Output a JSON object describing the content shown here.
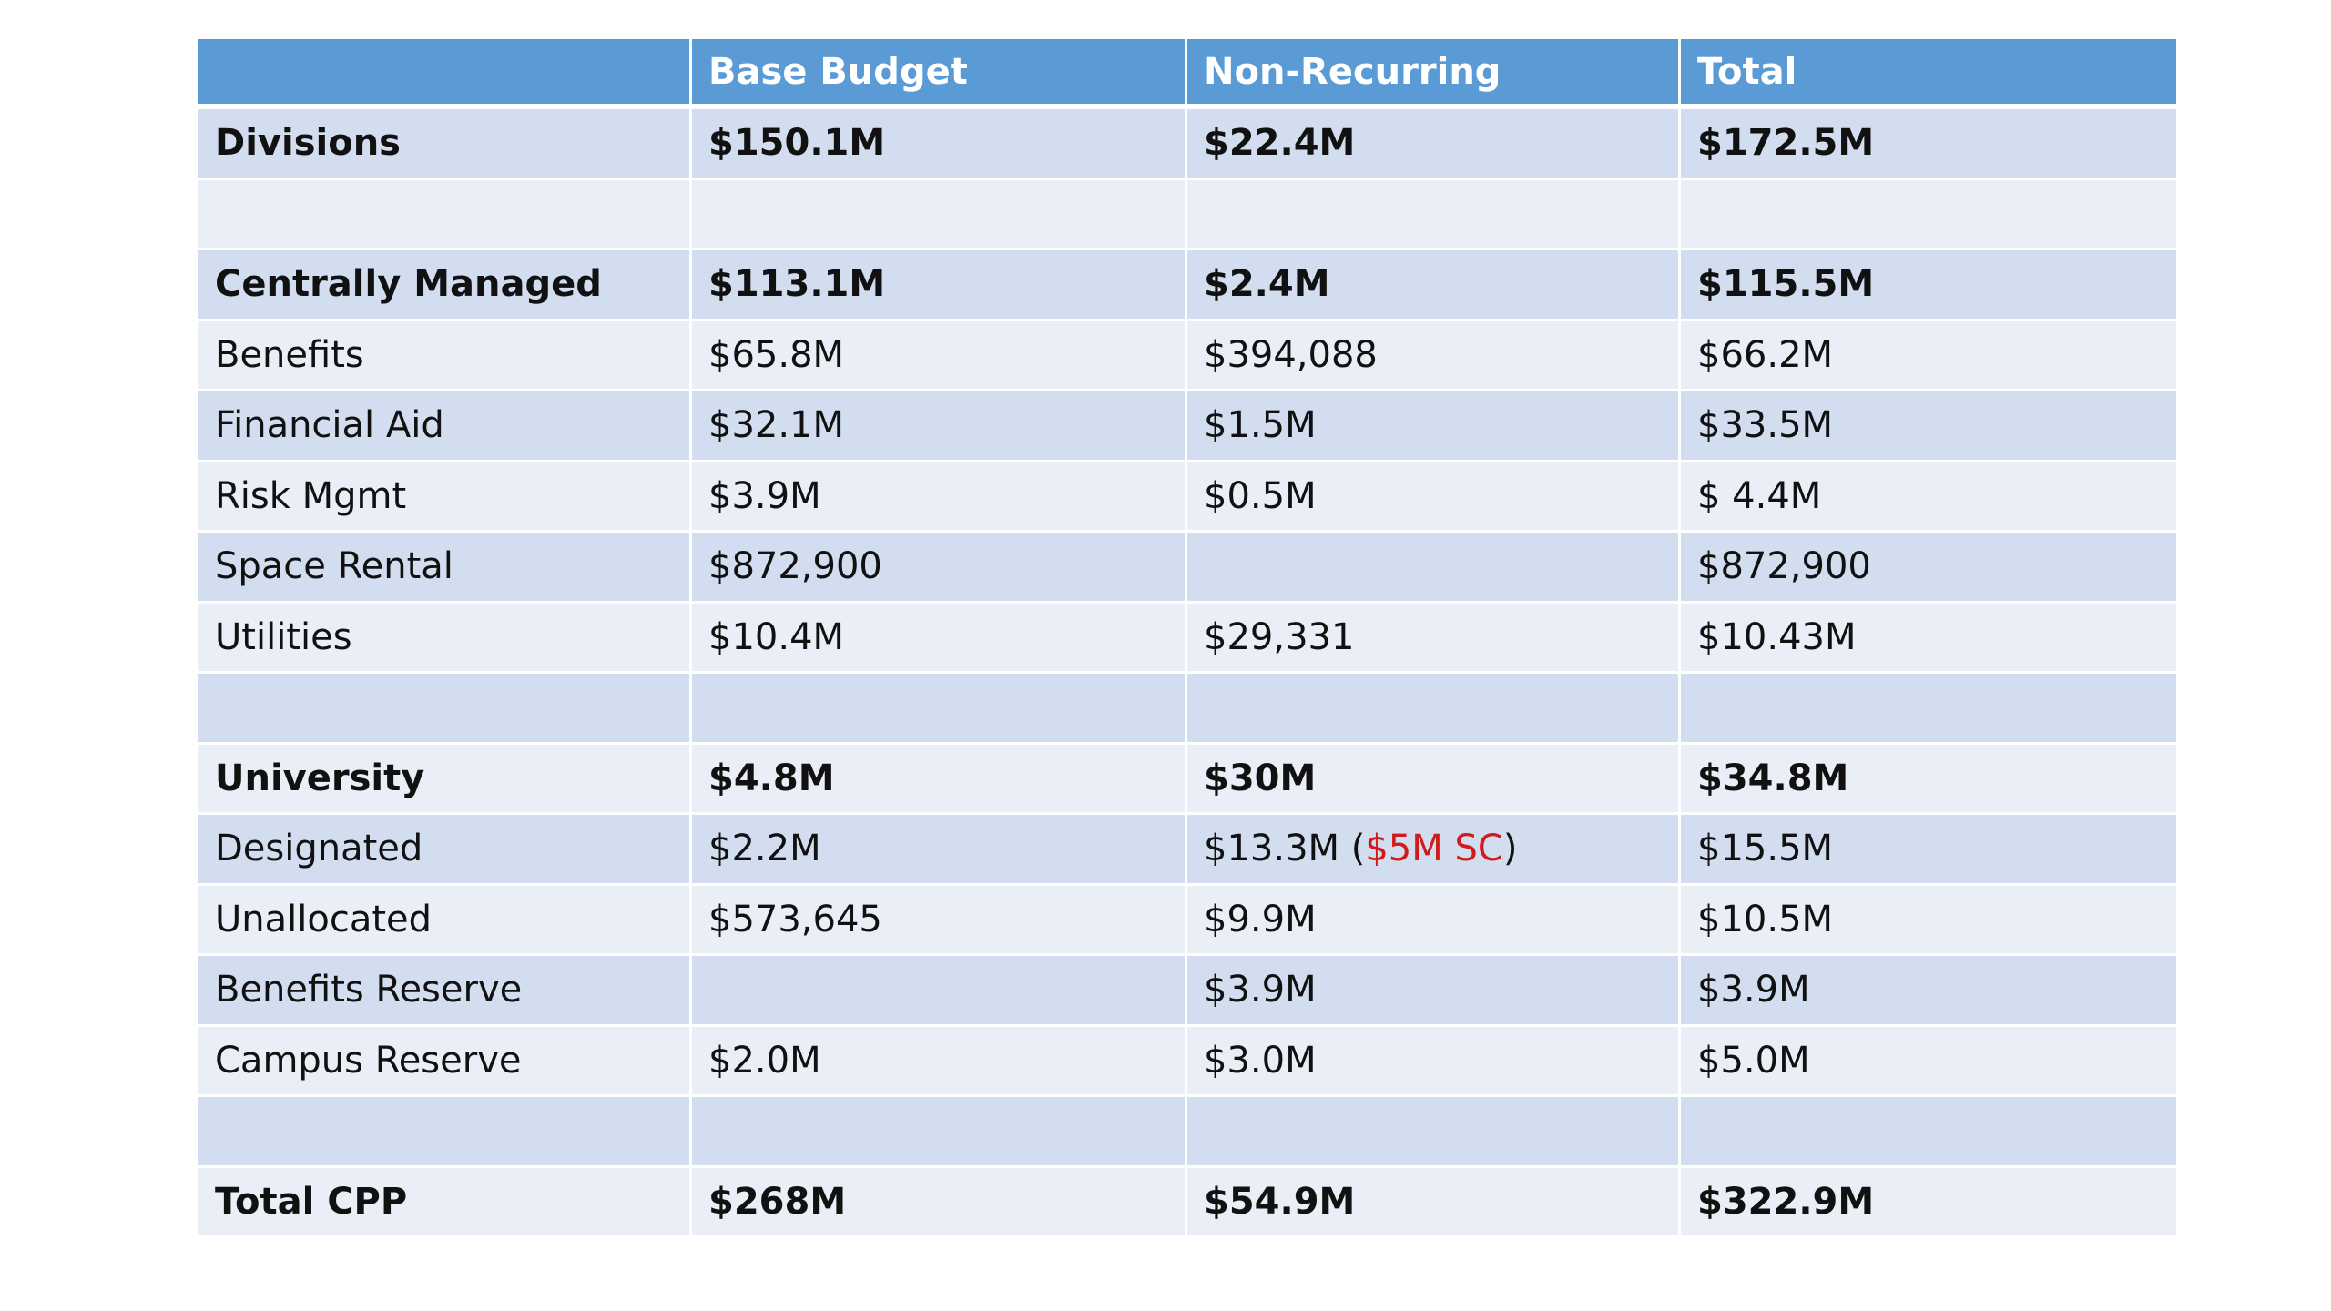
{
  "table": {
    "headers": [
      "",
      "Base Budget",
      "Non-Recurring",
      "Total"
    ],
    "rows": [
      {
        "label": "Divisions",
        "base": "$150.1M",
        "nonrec": "$22.4M",
        "total": "$172.5M",
        "bold": true
      },
      {
        "label": "",
        "base": "",
        "nonrec": "",
        "total": "",
        "bold": false
      },
      {
        "label": "Centrally Managed",
        "base": "$113.1M",
        "nonrec": "$2.4M",
        "total": "$115.5M",
        "bold": true
      },
      {
        "label": "Benefits",
        "base": "$65.8M",
        "nonrec": "$394,088",
        "total": "$66.2M",
        "bold": false
      },
      {
        "label": "Financial Aid",
        "base": "$32.1M",
        "nonrec": "$1.5M",
        "total": "$33.5M",
        "bold": false
      },
      {
        "label": "Risk Mgmt",
        "base": "$3.9M",
        "nonrec": "$0.5M",
        "total": "$ 4.4M",
        "bold": false
      },
      {
        "label": "Space Rental",
        "base": "$872,900",
        "nonrec": "",
        "total": "$872,900",
        "bold": false
      },
      {
        "label": "Utilities",
        "base": "$10.4M",
        "nonrec": "$29,331",
        "total": "$10.43M",
        "bold": false
      },
      {
        "label": "",
        "base": "",
        "nonrec": "",
        "total": "",
        "bold": false
      },
      {
        "label": "University",
        "base": "$4.8M",
        "nonrec": "$30M",
        "total": "$34.8M",
        "bold": true
      },
      {
        "label": "Designated",
        "base": "$2.2M",
        "nonrec": "$13.3M",
        "nonrec_note_open": " (",
        "nonrec_note": "$5M SC",
        "nonrec_note_close": ")",
        "total": "$15.5M",
        "bold": false
      },
      {
        "label": "Unallocated",
        "base": "$573,645",
        "nonrec": "$9.9M",
        "total": "$10.5M",
        "bold": false
      },
      {
        "label": "Benefits Reserve",
        "base": "",
        "nonrec": "$3.9M",
        "total": "$3.9M",
        "bold": false
      },
      {
        "label": "Campus Reserve",
        "base": "$2.0M",
        "nonrec": "$3.0M",
        "total": "$5.0M",
        "bold": false
      },
      {
        "label": "",
        "base": "",
        "nonrec": "",
        "total": "",
        "bold": false
      },
      {
        "label": "Total CPP",
        "base": "$268M",
        "nonrec": "$54.9M",
        "total": "$322.9M",
        "bold": true
      }
    ]
  },
  "colors": {
    "header": "#5b9bd5",
    "row_dark": "#d2deef",
    "row_light": "#eaeff7",
    "note": "#d11a1a"
  }
}
